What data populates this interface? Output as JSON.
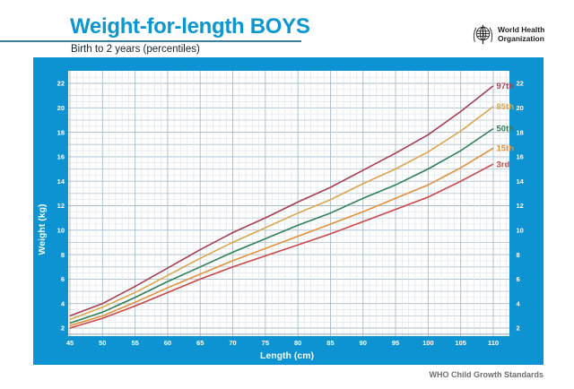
{
  "header": {
    "title": "Weight-for-length BOYS",
    "subtitle": "Birth to 2 years (percentiles)",
    "logo_line1": "World Health",
    "logo_line2": "Organization"
  },
  "footer": {
    "credit": "WHO Child Growth Standards"
  },
  "chart_data": {
    "type": "line",
    "title": "Weight-for-length BOYS",
    "subtitle": "Birth to 2 years (percentiles)",
    "xlabel": "Length (cm)",
    "ylabel": "Weight (kg)",
    "xlim": [
      45,
      110
    ],
    "ylim": [
      2,
      22
    ],
    "x_ticks": [
      45,
      50,
      55,
      60,
      65,
      70,
      75,
      80,
      85,
      90,
      95,
      100,
      105,
      110
    ],
    "y_ticks": [
      2,
      4,
      6,
      8,
      10,
      12,
      14,
      16,
      18,
      20,
      22
    ],
    "grid": true,
    "legend_position": "curve-end-right",
    "x": [
      45,
      50,
      55,
      60,
      65,
      70,
      75,
      80,
      85,
      90,
      95,
      100,
      105,
      110
    ],
    "series": [
      {
        "name": "97th",
        "color": "#a63e54",
        "values": [
          3.0,
          4.0,
          5.4,
          6.9,
          8.4,
          9.8,
          11.0,
          12.3,
          13.5,
          14.9,
          16.3,
          17.8,
          19.7,
          21.8
        ]
      },
      {
        "name": "85th",
        "color": "#dca64f",
        "values": [
          2.7,
          3.7,
          4.9,
          6.3,
          7.7,
          9.0,
          10.2,
          11.4,
          12.5,
          13.8,
          15.0,
          16.4,
          18.1,
          20.1
        ]
      },
      {
        "name": "50th",
        "color": "#2f7f58",
        "values": [
          2.4,
          3.3,
          4.5,
          5.8,
          7.0,
          8.2,
          9.3,
          10.4,
          11.4,
          12.6,
          13.7,
          15.0,
          16.5,
          18.3
        ]
      },
      {
        "name": "15th",
        "color": "#e0913d",
        "values": [
          2.2,
          3.0,
          4.1,
          5.3,
          6.4,
          7.5,
          8.5,
          9.5,
          10.5,
          11.5,
          12.6,
          13.7,
          15.1,
          16.7
        ]
      },
      {
        "name": "3rd",
        "color": "#c94747",
        "values": [
          2.0,
          2.8,
          3.8,
          4.9,
          6.0,
          7.0,
          7.9,
          8.8,
          9.7,
          10.7,
          11.7,
          12.7,
          14.0,
          15.4
        ]
      }
    ],
    "frame_color": "#0e93d2",
    "grid_minor_color": "#d9e1e7",
    "grid_mid_color": "#bccad4",
    "grid_major_color": "#a7bcc9"
  }
}
